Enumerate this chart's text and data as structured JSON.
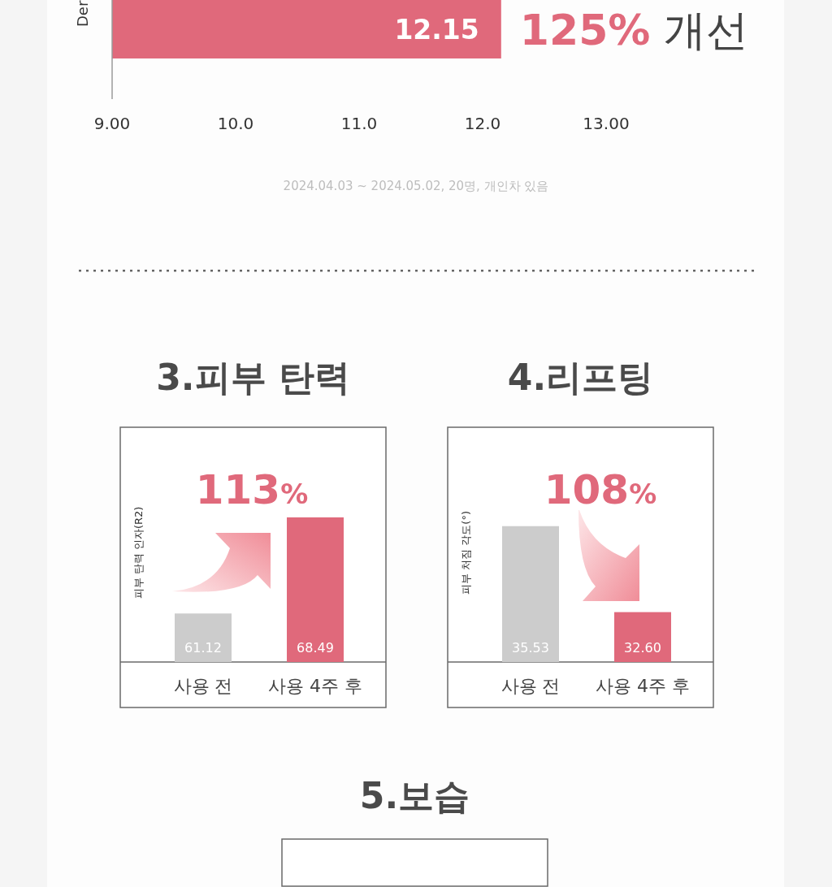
{
  "chart_data": [
    {
      "type": "bar",
      "orientation": "horizontal",
      "ylabel": "Der",
      "categories": [
        null
      ],
      "values": [
        12.15
      ],
      "color": "#e0697b",
      "data_labels": true,
      "xlim": [
        9,
        13
      ],
      "xticks": [
        {
          "value": 9,
          "label": "9.00"
        },
        {
          "value": 10,
          "label": "10.0"
        },
        {
          "value": 11,
          "label": "11.0"
        },
        {
          "value": 12,
          "label": "12.0"
        },
        {
          "value": 13,
          "label": "13.00"
        }
      ],
      "annotations": [
        {
          "text": "125% 개선",
          "x": 12.15
        },
        "2024.04.03 ~ 2024.05.02, 20명, 개인차 있음"
      ]
    },
    {
      "type": "bar",
      "title": "3.피부 탄력",
      "ylabel": "피부 탄력 인자(R2)",
      "categories": [
        "사용 전",
        "사용 4주 후"
      ],
      "values": [
        61.12,
        68.49
      ],
      "colors": [
        "#cccccc",
        "#e0697b"
      ],
      "data_labels": true,
      "ylim": [
        57.4,
        75.4
      ],
      "tick_labels": "x",
      "annotations": [
        "113%"
      ]
    },
    {
      "type": "bar",
      "title": "4.리프팅",
      "ylabel": "피부 처짐 각도(°)",
      "categories": [
        "사용 전",
        "사용 4주 후"
      ],
      "values": [
        35.53,
        32.6
      ],
      "value_labels": [
        "35.53",
        "32.60"
      ],
      "colors": [
        "#cccccc",
        "#e0697b"
      ],
      "ylim": [
        30.9,
        38.9
      ],
      "tick_labels": "x",
      "annotations": [
        "108%"
      ]
    },
    {
      "type": "other",
      "title": "5.보습"
    }
  ]
}
